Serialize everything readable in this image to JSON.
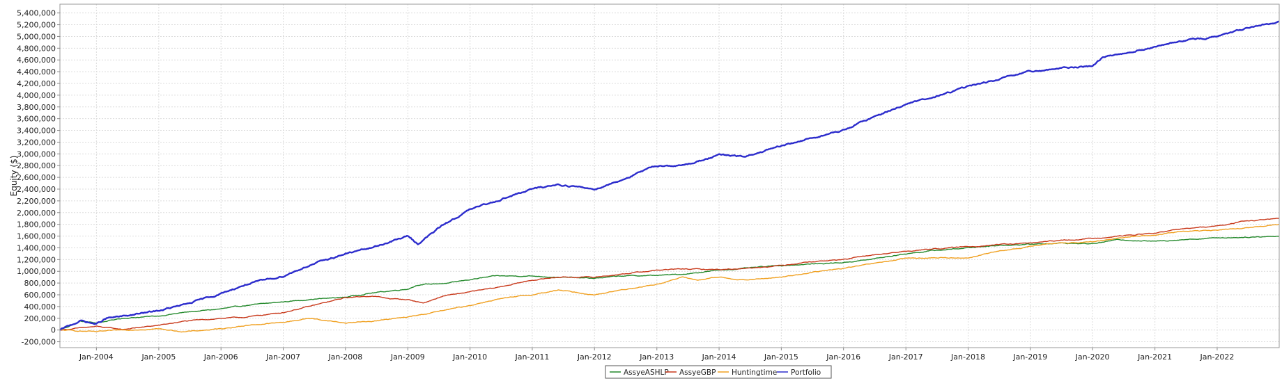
{
  "chart_data": {
    "type": "line",
    "title": "",
    "xlabel": "",
    "ylabel": "Equity ($)",
    "ylim": [
      -300000,
      5550000
    ],
    "xlim": [
      "2003-06-01",
      "2022-12-31"
    ],
    "y_ticks": [
      -200000,
      0,
      200000,
      400000,
      600000,
      800000,
      1000000,
      1200000,
      1400000,
      1600000,
      1800000,
      2000000,
      2200000,
      2400000,
      2600000,
      2800000,
      3000000,
      3200000,
      3400000,
      3600000,
      3800000,
      4000000,
      4200000,
      4400000,
      4600000,
      4800000,
      5000000,
      5200000,
      5400000
    ],
    "y_tick_labels": [
      "-200,000",
      "0",
      "200,000",
      "400,000",
      "600,000",
      "800,000",
      "1,000,000",
      "1,200,000",
      "1,400,000",
      "1,600,000",
      "1,800,000",
      "2,000,000",
      "2,200,000",
      "2,400,000",
      "2,600,000",
      "2,800,000",
      "3,000,000",
      "3,200,000",
      "3,400,000",
      "3,600,000",
      "3,800,000",
      "4,000,000",
      "4,200,000",
      "4,400,000",
      "4,600,000",
      "4,800,000",
      "5,000,000",
      "5,200,000",
      "5,400,000"
    ],
    "x_ticks": [
      "2004-01-01",
      "2005-01-01",
      "2006-01-01",
      "2007-01-01",
      "2008-01-01",
      "2009-01-01",
      "2010-01-01",
      "2011-01-01",
      "2012-01-01",
      "2013-01-01",
      "2014-01-01",
      "2015-01-01",
      "2016-01-01",
      "2017-01-01",
      "2018-01-01",
      "2019-01-01",
      "2020-01-01",
      "2021-01-01",
      "2022-01-01"
    ],
    "x_tick_labels": [
      "Jan-2004",
      "Jan-2005",
      "Jan-2006",
      "Jan-2007",
      "Jan-2008",
      "Jan-2009",
      "Jan-2010",
      "Jan-2011",
      "Jan-2012",
      "Jan-2013",
      "Jan-2014",
      "Jan-2015",
      "Jan-2016",
      "Jan-2017",
      "Jan-2018",
      "Jan-2019",
      "Jan-2020",
      "Jan-2021",
      "Jan-2022"
    ],
    "grid": true,
    "legend_position": "bottom-center",
    "series": [
      {
        "name": "AssyeASHLP",
        "color": "#22882a",
        "points": [
          [
            "2003-06-01",
            0
          ],
          [
            "2003-10-01",
            150000
          ],
          [
            "2004-01-01",
            120000
          ],
          [
            "2004-06-01",
            200000
          ],
          [
            "2005-01-01",
            240000
          ],
          [
            "2005-06-01",
            300000
          ],
          [
            "2006-01-01",
            360000
          ],
          [
            "2006-06-01",
            420000
          ],
          [
            "2007-01-01",
            480000
          ],
          [
            "2007-06-01",
            520000
          ],
          [
            "2008-01-01",
            560000
          ],
          [
            "2008-06-01",
            630000
          ],
          [
            "2009-01-01",
            700000
          ],
          [
            "2009-03-01",
            770000
          ],
          [
            "2009-09-01",
            800000
          ],
          [
            "2010-01-01",
            860000
          ],
          [
            "2010-06-01",
            920000
          ],
          [
            "2011-01-01",
            920000
          ],
          [
            "2011-06-01",
            900000
          ],
          [
            "2012-01-01",
            880000
          ],
          [
            "2012-06-01",
            920000
          ],
          [
            "2013-01-01",
            930000
          ],
          [
            "2013-06-01",
            950000
          ],
          [
            "2014-01-01",
            1020000
          ],
          [
            "2014-06-01",
            1050000
          ],
          [
            "2015-01-01",
            1100000
          ],
          [
            "2015-06-01",
            1120000
          ],
          [
            "2016-01-01",
            1150000
          ],
          [
            "2016-06-01",
            1200000
          ],
          [
            "2017-01-01",
            1300000
          ],
          [
            "2017-06-01",
            1350000
          ],
          [
            "2018-01-01",
            1400000
          ],
          [
            "2018-06-01",
            1440000
          ],
          [
            "2019-01-01",
            1460000
          ],
          [
            "2019-06-01",
            1480000
          ],
          [
            "2020-01-01",
            1470000
          ],
          [
            "2020-06-01",
            1540000
          ],
          [
            "2021-01-01",
            1510000
          ],
          [
            "2021-06-01",
            1540000
          ],
          [
            "2022-01-01",
            1570000
          ],
          [
            "2022-06-01",
            1580000
          ],
          [
            "2022-12-31",
            1600000
          ]
        ]
      },
      {
        "name": "AssyeGBP",
        "color": "#c8381a",
        "points": [
          [
            "2003-06-01",
            0
          ],
          [
            "2004-01-01",
            60000
          ],
          [
            "2004-06-01",
            10000
          ],
          [
            "2005-01-01",
            80000
          ],
          [
            "2005-06-01",
            150000
          ],
          [
            "2006-01-01",
            200000
          ],
          [
            "2006-06-01",
            220000
          ],
          [
            "2007-01-01",
            300000
          ],
          [
            "2007-06-01",
            400000
          ],
          [
            "2008-01-01",
            550000
          ],
          [
            "2008-06-01",
            580000
          ],
          [
            "2008-10-01",
            530000
          ],
          [
            "2009-01-01",
            520000
          ],
          [
            "2009-04-01",
            460000
          ],
          [
            "2009-08-01",
            580000
          ],
          [
            "2010-01-01",
            650000
          ],
          [
            "2010-06-01",
            720000
          ],
          [
            "2011-01-01",
            850000
          ],
          [
            "2011-06-01",
            900000
          ],
          [
            "2012-01-01",
            900000
          ],
          [
            "2012-06-01",
            950000
          ],
          [
            "2013-01-01",
            1020000
          ],
          [
            "2013-06-01",
            1040000
          ],
          [
            "2014-01-01",
            1030000
          ],
          [
            "2014-06-01",
            1050000
          ],
          [
            "2015-01-01",
            1100000
          ],
          [
            "2015-06-01",
            1160000
          ],
          [
            "2016-01-01",
            1200000
          ],
          [
            "2016-06-01",
            1270000
          ],
          [
            "2017-01-01",
            1340000
          ],
          [
            "2017-06-01",
            1380000
          ],
          [
            "2018-01-01",
            1420000
          ],
          [
            "2018-06-01",
            1450000
          ],
          [
            "2019-01-01",
            1480000
          ],
          [
            "2019-06-01",
            1520000
          ],
          [
            "2020-01-01",
            1560000
          ],
          [
            "2020-06-01",
            1600000
          ],
          [
            "2021-01-01",
            1650000
          ],
          [
            "2021-06-01",
            1720000
          ],
          [
            "2022-01-01",
            1770000
          ],
          [
            "2022-06-01",
            1850000
          ],
          [
            "2022-12-31",
            1900000
          ]
        ]
      },
      {
        "name": "Huntingtime",
        "color": "#f0a020",
        "points": [
          [
            "2003-06-01",
            0
          ],
          [
            "2004-01-01",
            -30000
          ],
          [
            "2004-06-01",
            0
          ],
          [
            "2005-01-01",
            20000
          ],
          [
            "2005-06-01",
            -30000
          ],
          [
            "2006-01-01",
            20000
          ],
          [
            "2006-06-01",
            80000
          ],
          [
            "2007-01-01",
            130000
          ],
          [
            "2007-06-01",
            200000
          ],
          [
            "2008-01-01",
            120000
          ],
          [
            "2008-06-01",
            150000
          ],
          [
            "2009-01-01",
            220000
          ],
          [
            "2009-06-01",
            300000
          ],
          [
            "2010-01-01",
            420000
          ],
          [
            "2010-06-01",
            520000
          ],
          [
            "2011-01-01",
            600000
          ],
          [
            "2011-06-01",
            680000
          ],
          [
            "2012-01-01",
            600000
          ],
          [
            "2012-06-01",
            680000
          ],
          [
            "2013-01-01",
            780000
          ],
          [
            "2013-06-01",
            900000
          ],
          [
            "2013-09-01",
            850000
          ],
          [
            "2014-01-01",
            900000
          ],
          [
            "2014-06-01",
            850000
          ],
          [
            "2015-01-01",
            900000
          ],
          [
            "2015-06-01",
            970000
          ],
          [
            "2016-01-01",
            1050000
          ],
          [
            "2016-06-01",
            1120000
          ],
          [
            "2017-01-01",
            1220000
          ],
          [
            "2017-06-01",
            1230000
          ],
          [
            "2018-01-01",
            1230000
          ],
          [
            "2018-06-01",
            1330000
          ],
          [
            "2019-01-01",
            1420000
          ],
          [
            "2019-06-01",
            1480000
          ],
          [
            "2020-01-01",
            1500000
          ],
          [
            "2020-06-01",
            1570000
          ],
          [
            "2021-01-01",
            1620000
          ],
          [
            "2021-06-01",
            1680000
          ],
          [
            "2022-01-01",
            1700000
          ],
          [
            "2022-06-01",
            1730000
          ],
          [
            "2022-12-31",
            1800000
          ]
        ]
      },
      {
        "name": "Portfolio",
        "color": "#2c2ccc",
        "points": [
          [
            "2003-06-01",
            0
          ],
          [
            "2003-10-01",
            160000
          ],
          [
            "2004-01-01",
            100000
          ],
          [
            "2004-03-01",
            200000
          ],
          [
            "2004-06-01",
            230000
          ],
          [
            "2005-01-01",
            330000
          ],
          [
            "2005-06-01",
            430000
          ],
          [
            "2006-01-01",
            620000
          ],
          [
            "2006-06-01",
            780000
          ],
          [
            "2007-01-01",
            920000
          ],
          [
            "2007-06-01",
            1100000
          ],
          [
            "2008-01-01",
            1300000
          ],
          [
            "2008-06-01",
            1400000
          ],
          [
            "2009-01-01",
            1600000
          ],
          [
            "2009-03-01",
            1470000
          ],
          [
            "2009-08-01",
            1800000
          ],
          [
            "2010-01-01",
            2050000
          ],
          [
            "2010-06-01",
            2200000
          ],
          [
            "2011-01-01",
            2400000
          ],
          [
            "2011-06-01",
            2480000
          ],
          [
            "2012-01-01",
            2400000
          ],
          [
            "2012-06-01",
            2550000
          ],
          [
            "2013-01-01",
            2800000
          ],
          [
            "2013-06-01",
            2800000
          ],
          [
            "2014-01-01",
            2980000
          ],
          [
            "2014-06-01",
            2950000
          ],
          [
            "2015-01-01",
            3130000
          ],
          [
            "2015-06-01",
            3250000
          ],
          [
            "2016-01-01",
            3400000
          ],
          [
            "2016-06-01",
            3600000
          ],
          [
            "2017-01-01",
            3850000
          ],
          [
            "2017-06-01",
            3950000
          ],
          [
            "2018-01-01",
            4150000
          ],
          [
            "2018-06-01",
            4250000
          ],
          [
            "2019-01-01",
            4400000
          ],
          [
            "2019-06-01",
            4450000
          ],
          [
            "2020-01-01",
            4500000
          ],
          [
            "2020-03-01",
            4650000
          ],
          [
            "2020-06-01",
            4700000
          ],
          [
            "2021-01-01",
            4820000
          ],
          [
            "2021-06-01",
            4920000
          ],
          [
            "2022-01-01",
            5000000
          ],
          [
            "2022-06-01",
            5120000
          ],
          [
            "2022-12-31",
            5250000
          ]
        ]
      }
    ]
  }
}
